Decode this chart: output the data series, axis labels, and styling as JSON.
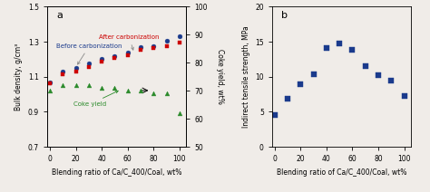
{
  "panel_a": {
    "x": [
      0,
      10,
      20,
      30,
      40,
      50,
      60,
      70,
      80,
      90,
      100
    ],
    "blue_circles": [
      1.07,
      1.13,
      1.15,
      1.175,
      1.2,
      1.22,
      1.24,
      1.27,
      1.275,
      1.305,
      1.33
    ],
    "red_squares": [
      1.065,
      1.115,
      1.13,
      1.155,
      1.185,
      1.205,
      1.225,
      1.255,
      1.265,
      1.275,
      1.295
    ],
    "green_triangles": [
      1.025,
      1.055,
      1.05,
      1.045,
      1.045,
      1.04,
      1.038,
      1.03,
      1.02,
      1.01,
      0.975
    ],
    "coke_yield_x": [
      0,
      10,
      20,
      30,
      40,
      50,
      60,
      70,
      80,
      90,
      100
    ],
    "coke_yield_y": [
      70,
      72,
      72,
      72,
      71,
      71,
      70,
      70,
      69,
      69,
      62
    ],
    "xlabel": "Blending ratio of Ca/C_400/Coal, wt%",
    "ylabel_left": "Bulk density, g/cm³",
    "ylabel_right": "Coke yield, wt%",
    "label_a": "a",
    "label_blue": "Before carbonization",
    "label_red": "After carbonization",
    "label_green": "Coke yield",
    "ylim_left": [
      0.7,
      1.5
    ],
    "ylim_right": [
      50,
      100
    ],
    "xlim": [
      -2,
      105
    ],
    "yticks_left": [
      0.7,
      0.9,
      1.1,
      1.3,
      1.5
    ],
    "yticks_right": [
      50,
      60,
      70,
      80,
      90,
      100
    ],
    "xticks": [
      0,
      20,
      40,
      60,
      80,
      100
    ]
  },
  "panel_b": {
    "x": [
      0,
      10,
      20,
      30,
      40,
      50,
      60,
      70,
      80,
      90,
      100
    ],
    "y": [
      4.5,
      6.9,
      9.0,
      10.3,
      14.1,
      14.8,
      13.9,
      11.5,
      10.2,
      9.4,
      7.2
    ],
    "xlabel": "Blending ratio of Ca/C_400/Coal, wt%",
    "ylabel": "Indirect tensile strength, MPa",
    "label_b": "b",
    "ylim": [
      0,
      20
    ],
    "xlim": [
      -2,
      105
    ],
    "yticks": [
      0,
      5,
      10,
      15,
      20
    ],
    "xticks": [
      0,
      20,
      40,
      60,
      80,
      100
    ]
  },
  "colors": {
    "blue": "#1a3a8c",
    "red": "#cc0000",
    "green": "#2a8a2a"
  },
  "bg_color": "#f0ece8"
}
